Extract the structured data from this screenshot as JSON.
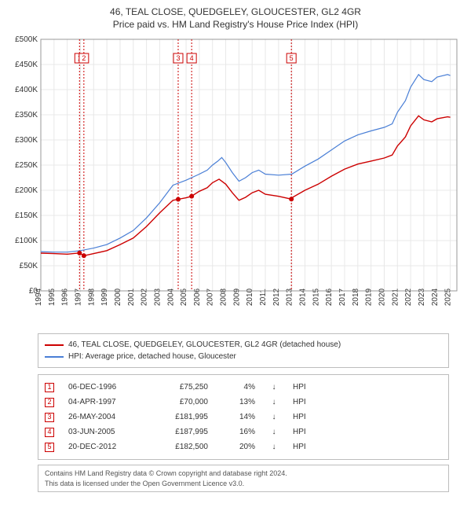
{
  "title": "46, TEAL CLOSE, QUEDGELEY, GLOUCESTER, GL2 4GR",
  "subtitle": "Price paid vs. HM Land Registry's House Price Index (HPI)",
  "chart": {
    "type": "line",
    "background_color": "#ffffff",
    "grid_color": "#e8e8e8",
    "axis_color": "#999999",
    "x_years": [
      1994,
      1995,
      1996,
      1997,
      1998,
      1999,
      2000,
      2001,
      2002,
      2003,
      2004,
      2005,
      2006,
      2007,
      2008,
      2009,
      2010,
      2011,
      2012,
      2013,
      2014,
      2015,
      2016,
      2017,
      2018,
      2019,
      2020,
      2021,
      2022,
      2023,
      2024,
      2025
    ],
    "xlim": [
      1994,
      2025.5
    ],
    "ylim": [
      0,
      500000
    ],
    "ytick_step": 50000,
    "y_tick_labels": [
      "£0",
      "£50K",
      "£100K",
      "£150K",
      "£200K",
      "£250K",
      "£300K",
      "£350K",
      "£400K",
      "£450K",
      "£500K"
    ],
    "label_fontsize": 10,
    "hpi_color": "#4a7fd6",
    "price_color": "#cc0000",
    "marker_color": "#cc0000",
    "line_width_hpi": 1.2,
    "line_width_price": 1.4,
    "series_hpi": [
      [
        1994,
        78000
      ],
      [
        1995,
        77000
      ],
      [
        1996,
        77000
      ],
      [
        1997,
        80000
      ],
      [
        1998,
        85000
      ],
      [
        1999,
        92000
      ],
      [
        2000,
        105000
      ],
      [
        2001,
        120000
      ],
      [
        2002,
        145000
      ],
      [
        2003,
        175000
      ],
      [
        2004,
        210000
      ],
      [
        2005,
        220000
      ],
      [
        2006,
        232000
      ],
      [
        2006.6,
        240000
      ],
      [
        2007,
        250000
      ],
      [
        2007.4,
        258000
      ],
      [
        2007.7,
        265000
      ],
      [
        2008,
        255000
      ],
      [
        2008.5,
        235000
      ],
      [
        2009,
        218000
      ],
      [
        2009.5,
        225000
      ],
      [
        2010,
        235000
      ],
      [
        2010.5,
        240000
      ],
      [
        2011,
        232000
      ],
      [
        2012,
        230000
      ],
      [
        2013,
        232000
      ],
      [
        2014,
        248000
      ],
      [
        2015,
        262000
      ],
      [
        2016,
        280000
      ],
      [
        2017,
        298000
      ],
      [
        2018,
        310000
      ],
      [
        2019,
        318000
      ],
      [
        2020,
        325000
      ],
      [
        2020.6,
        332000
      ],
      [
        2021,
        355000
      ],
      [
        2021.6,
        378000
      ],
      [
        2022,
        405000
      ],
      [
        2022.6,
        430000
      ],
      [
        2023,
        420000
      ],
      [
        2023.6,
        416000
      ],
      [
        2024,
        425000
      ],
      [
        2024.8,
        430000
      ],
      [
        2025,
        428000
      ]
    ],
    "series_price": [
      [
        1994,
        75000
      ],
      [
        1995,
        74000
      ],
      [
        1996,
        73000
      ],
      [
        1996.9,
        75250
      ],
      [
        1997.3,
        70000
      ],
      [
        1998,
        74000
      ],
      [
        1999,
        80000
      ],
      [
        2000,
        92000
      ],
      [
        2001,
        105000
      ],
      [
        2002,
        128000
      ],
      [
        2003,
        155000
      ],
      [
        2004,
        180000
      ],
      [
        2004.4,
        181995
      ],
      [
        2005,
        185000
      ],
      [
        2005.4,
        187995
      ],
      [
        2006,
        198000
      ],
      [
        2006.6,
        205000
      ],
      [
        2007,
        215000
      ],
      [
        2007.5,
        222000
      ],
      [
        2008,
        212000
      ],
      [
        2008.5,
        195000
      ],
      [
        2009,
        180000
      ],
      [
        2009.5,
        186000
      ],
      [
        2010,
        195000
      ],
      [
        2010.5,
        200000
      ],
      [
        2011,
        192000
      ],
      [
        2012,
        188000
      ],
      [
        2012.95,
        182500
      ],
      [
        2013,
        185000
      ],
      [
        2014,
        200000
      ],
      [
        2015,
        212000
      ],
      [
        2016,
        228000
      ],
      [
        2017,
        242000
      ],
      [
        2018,
        252000
      ],
      [
        2019,
        258000
      ],
      [
        2020,
        264000
      ],
      [
        2020.6,
        270000
      ],
      [
        2021,
        288000
      ],
      [
        2021.6,
        306000
      ],
      [
        2022,
        328000
      ],
      [
        2022.6,
        348000
      ],
      [
        2023,
        340000
      ],
      [
        2023.6,
        336000
      ],
      [
        2024,
        342000
      ],
      [
        2024.8,
        346000
      ],
      [
        2025,
        345000
      ]
    ],
    "sale_markers": [
      {
        "n": "1",
        "year": 1996.93,
        "price": 75250
      },
      {
        "n": "2",
        "year": 1997.26,
        "price": 70000
      },
      {
        "n": "3",
        "year": 2004.4,
        "price": 181995
      },
      {
        "n": "4",
        "year": 2005.42,
        "price": 187995
      },
      {
        "n": "5",
        "year": 2012.97,
        "price": 182500
      }
    ]
  },
  "legend": {
    "price_label": "46, TEAL CLOSE, QUEDGELEY, GLOUCESTER, GL2 4GR (detached house)",
    "hpi_label": "HPI: Average price, detached house, Gloucester"
  },
  "sales": [
    {
      "n": "1",
      "date": "06-DEC-1996",
      "price": "£75,250",
      "pct": "4%",
      "dir": "↓",
      "tag": "HPI"
    },
    {
      "n": "2",
      "date": "04-APR-1997",
      "price": "£70,000",
      "pct": "13%",
      "dir": "↓",
      "tag": "HPI"
    },
    {
      "n": "3",
      "date": "26-MAY-2004",
      "price": "£181,995",
      "pct": "14%",
      "dir": "↓",
      "tag": "HPI"
    },
    {
      "n": "4",
      "date": "03-JUN-2005",
      "price": "£187,995",
      "pct": "16%",
      "dir": "↓",
      "tag": "HPI"
    },
    {
      "n": "5",
      "date": "20-DEC-2012",
      "price": "£182,500",
      "pct": "20%",
      "dir": "↓",
      "tag": "HPI"
    }
  ],
  "footer": {
    "line1": "Contains HM Land Registry data © Crown copyright and database right 2024.",
    "line2": "This data is licensed under the Open Government Licence v3.0."
  }
}
